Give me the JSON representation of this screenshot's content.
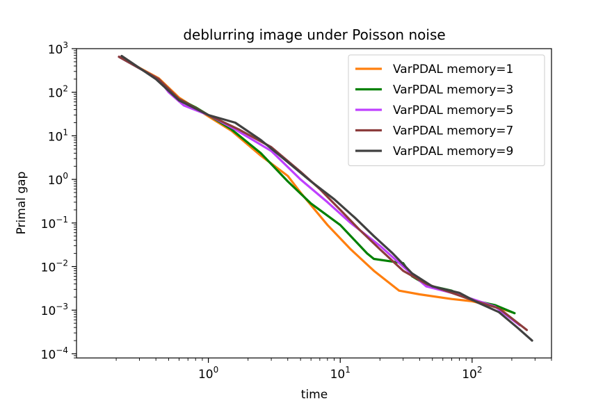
{
  "chart_data": {
    "type": "line",
    "title": "deblurring image under Poisson noise",
    "xlabel": "time",
    "ylabel": "Primal gap",
    "xscale": "log",
    "yscale": "log",
    "xlim": [
      0.1,
      400
    ],
    "ylim": [
      8e-05,
      1000
    ],
    "grid": false,
    "legend_position": "top-right",
    "x_ticks": [
      {
        "value": 1,
        "base": "10",
        "exp": "0"
      },
      {
        "value": 10,
        "base": "10",
        "exp": "1"
      },
      {
        "value": 100,
        "base": "10",
        "exp": "2"
      }
    ],
    "y_ticks": [
      {
        "value": 0.0001,
        "base": "10",
        "exp": "−4"
      },
      {
        "value": 0.001,
        "base": "10",
        "exp": "−3"
      },
      {
        "value": 0.01,
        "base": "10",
        "exp": "−2"
      },
      {
        "value": 0.1,
        "base": "10",
        "exp": "−1"
      },
      {
        "value": 1,
        "base": "10",
        "exp": "0"
      },
      {
        "value": 10,
        "base": "10",
        "exp": "1"
      },
      {
        "value": 100,
        "base": "10",
        "exp": "2"
      },
      {
        "value": 1000,
        "base": "10",
        "exp": "3"
      }
    ],
    "series": [
      {
        "name": "VarPDAL memory=1",
        "color": "#ff7f0e",
        "points": [
          [
            0.21,
            650
          ],
          [
            0.42,
            210
          ],
          [
            0.6,
            75
          ],
          [
            1.0,
            28
          ],
          [
            1.5,
            13
          ],
          [
            2.5,
            3.5
          ],
          [
            4,
            1.2
          ],
          [
            5,
            0.5
          ],
          [
            8,
            0.09
          ],
          [
            12,
            0.025
          ],
          [
            18,
            0.008
          ],
          [
            28,
            0.0028
          ],
          [
            40,
            0.0023
          ],
          [
            70,
            0.0018
          ],
          [
            100,
            0.0016
          ],
          [
            150,
            0.0012
          ],
          [
            200,
            0.0009
          ]
        ]
      },
      {
        "name": "VarPDAL memory=3",
        "color": "#008000",
        "points": [
          [
            0.21,
            650
          ],
          [
            0.42,
            200
          ],
          [
            0.55,
            80
          ],
          [
            0.8,
            45
          ],
          [
            1.0,
            30
          ],
          [
            1.5,
            14
          ],
          [
            2.5,
            4.0
          ],
          [
            4,
            0.9
          ],
          [
            6,
            0.28
          ],
          [
            10,
            0.09
          ],
          [
            16,
            0.02
          ],
          [
            18,
            0.015
          ],
          [
            25,
            0.013
          ],
          [
            30,
            0.012
          ],
          [
            35,
            0.006
          ],
          [
            45,
            0.0038
          ],
          [
            70,
            0.0028
          ],
          [
            100,
            0.0017
          ],
          [
            150,
            0.0013
          ],
          [
            210,
            0.00085
          ]
        ]
      },
      {
        "name": "VarPDAL memory=5",
        "color": "#bf40ff",
        "points": [
          [
            0.21,
            650
          ],
          [
            0.42,
            200
          ],
          [
            0.5,
            100
          ],
          [
            0.65,
            50
          ],
          [
            1.0,
            30
          ],
          [
            1.6,
            14
          ],
          [
            3,
            4.5
          ],
          [
            5,
            1.0
          ],
          [
            8,
            0.3
          ],
          [
            12,
            0.1
          ],
          [
            20,
            0.03
          ],
          [
            30,
            0.01
          ],
          [
            45,
            0.0035
          ],
          [
            70,
            0.0025
          ],
          [
            100,
            0.0018
          ],
          [
            150,
            0.0012
          ],
          [
            230,
            0.00045
          ]
        ]
      },
      {
        "name": "VarPDAL memory=7",
        "color": "#8c3c3c",
        "points": [
          [
            0.21,
            650
          ],
          [
            0.42,
            200
          ],
          [
            0.6,
            70
          ],
          [
            1.0,
            30
          ],
          [
            1.7,
            14
          ],
          [
            3,
            5.5
          ],
          [
            5,
            1.5
          ],
          [
            7,
            0.6
          ],
          [
            10,
            0.2
          ],
          [
            14,
            0.07
          ],
          [
            20,
            0.025
          ],
          [
            30,
            0.008
          ],
          [
            45,
            0.004
          ],
          [
            70,
            0.0025
          ],
          [
            100,
            0.0017
          ],
          [
            160,
            0.0011
          ],
          [
            260,
            0.00035
          ]
        ]
      },
      {
        "name": "VarPDAL memory=9",
        "color": "#404040",
        "points": [
          [
            0.22,
            680
          ],
          [
            0.4,
            200
          ],
          [
            0.6,
            65
          ],
          [
            1.0,
            30
          ],
          [
            1.6,
            20
          ],
          [
            2.5,
            8
          ],
          [
            4,
            2.5
          ],
          [
            6,
            0.9
          ],
          [
            9,
            0.35
          ],
          [
            13,
            0.13
          ],
          [
            18,
            0.05
          ],
          [
            25,
            0.02
          ],
          [
            35,
            0.007
          ],
          [
            50,
            0.0035
          ],
          [
            80,
            0.0025
          ],
          [
            110,
            0.0015
          ],
          [
            160,
            0.0009
          ],
          [
            220,
            0.0004
          ],
          [
            285,
            0.0002
          ]
        ]
      }
    ]
  }
}
